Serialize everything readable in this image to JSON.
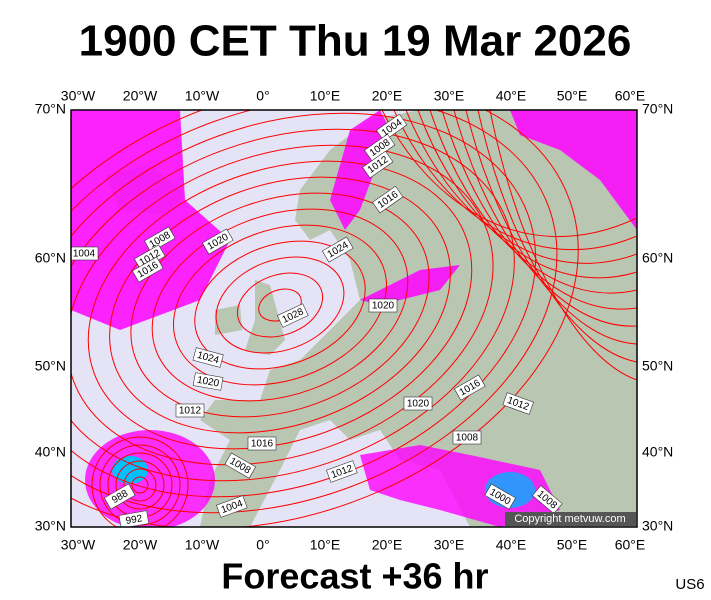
{
  "header": {
    "title": "1900 CET Thu 19 Mar 2026"
  },
  "map": {
    "longitude_labels": [
      "30°W",
      "20°W",
      "10°W",
      "0°",
      "10°E",
      "20°E",
      "30°E",
      "40°E",
      "50°E",
      "60°E"
    ],
    "latitude_labels": [
      "70°N",
      "60°N",
      "50°N",
      "40°N",
      "30°N"
    ],
    "isobar_labels": [
      1004,
      1008,
      1012,
      1016,
      1020,
      1024,
      1008,
      1012,
      1016,
      1004,
      1028,
      1020,
      1024,
      1020,
      1012,
      1016,
      1020,
      1016,
      1012,
      1008,
      1012,
      1008,
      1004,
      988,
      992,
      1000,
      1008
    ],
    "copyright": "Copyright metvuw.com"
  },
  "footer": {
    "forecast": "Forecast +36 hr",
    "code": "US6"
  }
}
